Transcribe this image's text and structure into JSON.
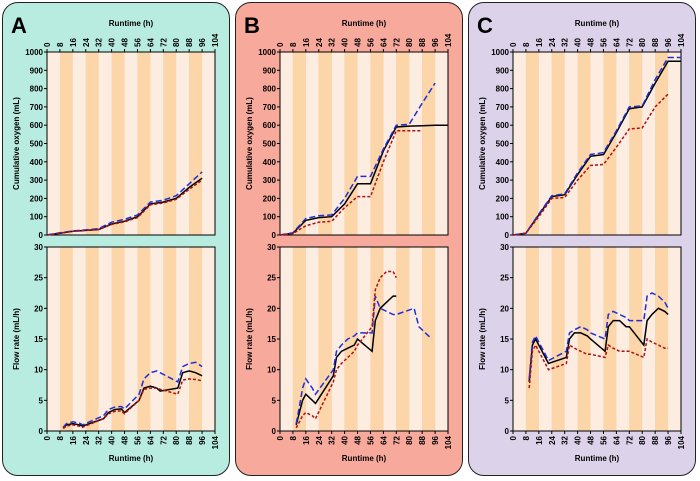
{
  "colors": {
    "panel_A_bg": "#b9ece0",
    "panel_B_bg": "#f7a99c",
    "panel_C_bg": "#dcd3ea",
    "band_dark": "#fcd5a8",
    "band_light": "#fdece0",
    "series_black": "#000000",
    "series_blue": "#1f2fd6",
    "series_red": "#b01010"
  },
  "chart_data": [
    {
      "panel": "A",
      "type": "line",
      "top_chart": {
        "ylabel": "Cumulative oxygen (mL)",
        "xlabel": "Runtime (h)",
        "xlim": [
          0,
          104
        ],
        "ylim": [
          0,
          1000
        ],
        "xticks": [
          "0",
          "8",
          "16",
          "24",
          "32",
          "40",
          "48",
          "56",
          "64",
          "72",
          "80",
          "88",
          "96",
          "104"
        ],
        "yticks": [
          "0",
          "100",
          "200",
          "300",
          "400",
          "500",
          "600",
          "700",
          "800",
          "900",
          "1000"
        ],
        "series": [
          {
            "name": "black",
            "x": [
              0,
              8,
              16,
              24,
              32,
              40,
              48,
              56,
              64,
              72,
              80,
              88,
              96
            ],
            "y": [
              0,
              10,
              20,
              25,
              30,
              60,
              75,
              100,
              170,
              180,
              200,
              260,
              310
            ]
          },
          {
            "name": "blue",
            "x": [
              0,
              8,
              16,
              24,
              32,
              40,
              48,
              56,
              64,
              72,
              80,
              88,
              96
            ],
            "y": [
              0,
              12,
              22,
              28,
              35,
              70,
              85,
              110,
              180,
              190,
              215,
              280,
              345
            ]
          },
          {
            "name": "red",
            "x": [
              0,
              8,
              16,
              24,
              32,
              40,
              48,
              56,
              64,
              72,
              80,
              88,
              96
            ],
            "y": [
              0,
              10,
              20,
              25,
              30,
              58,
              72,
              95,
              165,
              175,
              195,
              250,
              300
            ]
          }
        ]
      },
      "bottom_chart": {
        "ylabel": "Flow rate (mL/h)",
        "xlabel": "Runtime (h)",
        "xlim": [
          0,
          104
        ],
        "ylim": [
          0,
          30
        ],
        "xticks": [
          "0",
          "8",
          "16",
          "24",
          "32",
          "40",
          "48",
          "56",
          "64",
          "72",
          "80",
          "88",
          "96",
          "104"
        ],
        "yticks": [
          "0",
          "5",
          "10",
          "15",
          "20",
          "25",
          "30"
        ],
        "series": [
          {
            "name": "black",
            "x": [
              10,
              12,
              16,
              20,
              22,
              35,
              38,
              42,
              46,
              48,
              57,
              60,
              64,
              68,
              70,
              81,
              84,
              88,
              92,
              96
            ],
            "y": [
              0.5,
              1,
              1.2,
              1,
              0.8,
              2,
              3,
              3.5,
              3.6,
              3,
              5,
              7,
              7.3,
              7,
              6.5,
              7,
              9.5,
              9.8,
              9.5,
              9
            ]
          },
          {
            "name": "blue",
            "x": [
              10,
              12,
              16,
              20,
              22,
              35,
              38,
              42,
              46,
              48,
              57,
              60,
              64,
              68,
              70,
              81,
              84,
              88,
              92,
              96
            ],
            "y": [
              0.6,
              1.2,
              1.5,
              1.3,
              1,
              2.5,
              3.5,
              3.9,
              4,
              3.6,
              6,
              8.5,
              9.5,
              9.8,
              9.5,
              8,
              10.5,
              11,
              11.2,
              10.5
            ]
          },
          {
            "name": "red",
            "x": [
              10,
              12,
              16,
              20,
              22,
              35,
              38,
              42,
              46,
              48,
              57,
              60,
              64,
              68,
              70,
              81,
              84,
              88,
              92,
              96
            ],
            "y": [
              0.4,
              0.8,
              1,
              0.8,
              0.6,
              2,
              2.8,
              3.2,
              3.3,
              2.8,
              5,
              6.8,
              7,
              7,
              6.8,
              6,
              8.3,
              8.5,
              8.4,
              8.2
            ]
          }
        ]
      }
    },
    {
      "panel": "B",
      "type": "line",
      "top_chart": {
        "ylabel": "Cumulative oxygen (mL)",
        "xlabel": "Runtime (h)",
        "xlim": [
          0,
          104
        ],
        "ylim": [
          0,
          1000
        ],
        "xticks": [
          "0",
          "8",
          "16",
          "24",
          "32",
          "40",
          "48",
          "56",
          "64",
          "72",
          "80",
          "88",
          "96",
          "104"
        ],
        "yticks": [
          "0",
          "100",
          "200",
          "300",
          "400",
          "500",
          "600",
          "700",
          "800",
          "900",
          "1000"
        ],
        "series": [
          {
            "name": "black",
            "x": [
              0,
              8,
              16,
              24,
              32,
              40,
              48,
              56,
              64,
              72,
              80,
              88,
              96,
              104
            ],
            "y": [
              0,
              10,
              80,
              95,
              100,
              170,
              280,
              280,
              460,
              590,
              595,
              597,
              600,
              600
            ]
          },
          {
            "name": "blue",
            "x": [
              0,
              8,
              16,
              24,
              32,
              40,
              48,
              56,
              64,
              72,
              80,
              88,
              96
            ],
            "y": [
              0,
              12,
              90,
              105,
              110,
              200,
              320,
              320,
              470,
              600,
              605,
              720,
              830
            ]
          },
          {
            "name": "red",
            "x": [
              0,
              8,
              16,
              24,
              32,
              40,
              48,
              56,
              64,
              72,
              80,
              88
            ],
            "y": [
              0,
              8,
              50,
              70,
              75,
              150,
              210,
              210,
              400,
              570,
              570,
              570
            ]
          }
        ]
      },
      "bottom_chart": {
        "ylabel": "Flow rate (mL/h)",
        "xlabel": "Runtime (h)",
        "xlim": [
          0,
          104
        ],
        "ylim": [
          0,
          30
        ],
        "xticks": [
          "0",
          "8",
          "16",
          "24",
          "32",
          "40",
          "48",
          "56",
          "64",
          "72",
          "80",
          "88",
          "96",
          "104"
        ],
        "yticks": [
          "0",
          "5",
          "10",
          "15",
          "20",
          "25",
          "30"
        ],
        "series": [
          {
            "name": "black",
            "x": [
              10,
              12,
              14,
              16,
              20,
              22,
              33,
              35,
              38,
              42,
              46,
              48,
              57,
              59,
              62,
              66,
              70,
              72
            ],
            "y": [
              1,
              3,
              5,
              6,
              5,
              4.5,
              9,
              12,
              13,
              13.5,
              14,
              15,
              13,
              18,
              20,
              21,
              22,
              22
            ]
          },
          {
            "name": "blue",
            "x": [
              10,
              12,
              14,
              16,
              20,
              22,
              33,
              35,
              38,
              42,
              46,
              48,
              57,
              59,
              62,
              66,
              70,
              72,
              83,
              86,
              90,
              94
            ],
            "y": [
              1.2,
              4,
              7,
              8.5,
              7,
              6,
              10,
              13,
              14,
              15,
              15.5,
              16,
              16,
              22,
              20,
              19.5,
              19,
              19,
              20,
              17,
              16,
              15
            ]
          },
          {
            "name": "red",
            "x": [
              10,
              12,
              14,
              16,
              20,
              22,
              33,
              35,
              38,
              42,
              46,
              48,
              57,
              59,
              62,
              66,
              70,
              72
            ],
            "y": [
              0.5,
              1.5,
              2.5,
              3,
              2.5,
              2,
              8,
              10,
              11,
              12,
              13,
              14,
              17,
              23,
              25,
              26,
              26,
              25
            ]
          }
        ]
      }
    },
    {
      "panel": "C",
      "type": "line",
      "top_chart": {
        "ylabel": "Cumulative oxygen (mL)",
        "xlabel": "Runtime (h)",
        "xlim": [
          0,
          104
        ],
        "ylim": [
          0,
          1000
        ],
        "xticks": [
          "0",
          "8",
          "16",
          "24",
          "32",
          "40",
          "48",
          "56",
          "64",
          "72",
          "80",
          "88",
          "96",
          "104"
        ],
        "yticks": [
          "0",
          "100",
          "200",
          "300",
          "400",
          "500",
          "600",
          "700",
          "800",
          "900",
          "1000"
        ],
        "series": [
          {
            "name": "black",
            "x": [
              0,
              8,
              16,
              24,
              32,
              40,
              48,
              56,
              64,
              72,
              80,
              88,
              96,
              104
            ],
            "y": [
              0,
              10,
              110,
              210,
              220,
              330,
              430,
              440,
              560,
              690,
              700,
              830,
              950,
              950
            ]
          },
          {
            "name": "blue",
            "x": [
              0,
              8,
              16,
              24,
              32,
              40,
              48,
              56,
              64,
              72,
              80,
              88,
              96,
              104
            ],
            "y": [
              0,
              10,
              115,
              215,
              225,
              340,
              440,
              450,
              570,
              700,
              705,
              850,
              970,
              970
            ]
          },
          {
            "name": "red",
            "x": [
              0,
              8,
              16,
              24,
              32,
              40,
              48,
              56,
              64,
              72,
              80,
              88,
              96
            ],
            "y": [
              0,
              10,
              100,
              200,
              205,
              300,
              380,
              385,
              480,
              580,
              585,
              700,
              770
            ]
          }
        ]
      },
      "bottom_chart": {
        "ylabel": "Flow rate (mL/h)",
        "xlabel": "Runtime (h)",
        "xlim": [
          0,
          104
        ],
        "ylim": [
          0,
          30
        ],
        "xticks": [
          "0",
          "8",
          "16",
          "24",
          "32",
          "40",
          "48",
          "56",
          "64",
          "72",
          "80",
          "88",
          "96",
          "104"
        ],
        "yticks": [
          "0",
          "5",
          "10",
          "15",
          "20",
          "25",
          "30"
        ],
        "series": [
          {
            "name": "black",
            "x": [
              10,
              12,
              14,
              16,
              20,
              22,
              33,
              35,
              38,
              42,
              46,
              48,
              57,
              59,
              62,
              66,
              70,
              72,
              81,
              83,
              86,
              90,
              94,
              96
            ],
            "y": [
              8,
              14,
              15,
              14,
              12,
              11,
              12,
              15,
              16,
              16,
              15.5,
              15,
              13,
              17,
              18,
              18,
              17,
              17,
              14,
              18,
              19,
              20,
              19.5,
              19
            ]
          },
          {
            "name": "blue",
            "x": [
              10,
              12,
              14,
              16,
              20,
              22,
              33,
              35,
              38,
              42,
              46,
              48,
              57,
              59,
              62,
              66,
              70,
              72,
              81,
              83,
              86,
              90,
              94,
              96
            ],
            "y": [
              8.5,
              14.5,
              15.5,
              14.5,
              12.5,
              11.5,
              13,
              16,
              16.5,
              17,
              16.5,
              16,
              15,
              19,
              19.5,
              19,
              18.5,
              18,
              18,
              22,
              22.5,
              22,
              21,
              20
            ]
          },
          {
            "name": "red",
            "x": [
              10,
              12,
              14,
              16,
              20,
              22,
              33,
              35,
              38,
              42,
              46,
              48,
              57,
              59,
              62,
              66,
              70,
              72,
              81,
              83,
              86,
              90,
              94,
              96
            ],
            "y": [
              7,
              13,
              14,
              13,
              11,
              10,
              11,
              14,
              13.5,
              13,
              12.5,
              12.5,
              12,
              14,
              13.5,
              13,
              13,
              13,
              12,
              15,
              14.5,
              14,
              13.5,
              13.5
            ]
          }
        ]
      }
    }
  ],
  "panels": [
    {
      "letter": "A"
    },
    {
      "letter": "B"
    },
    {
      "letter": "C"
    }
  ]
}
